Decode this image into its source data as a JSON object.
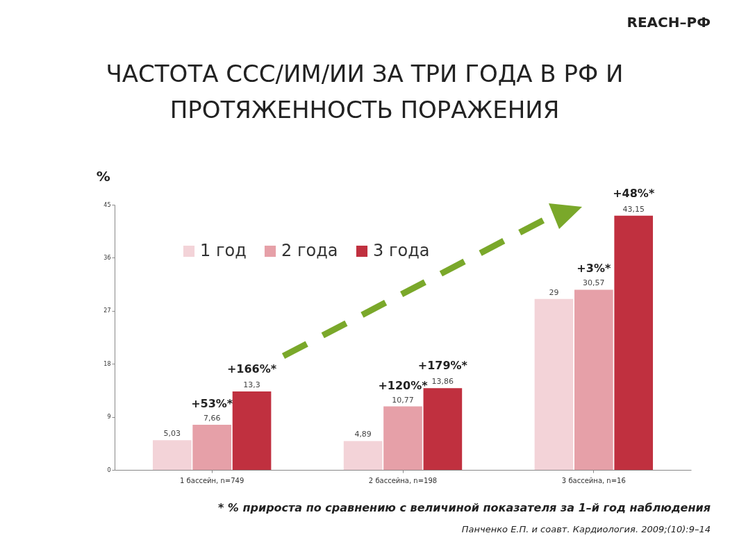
{
  "chart_data": {
    "type": "bar",
    "title": "ЧАСТОТА ССС/ИМ/ИИ ЗА ТРИ ГОДА В РФ И ПРОТЯЖЕННОСТЬ ПОРАЖЕНИЯ",
    "ylabel": "%",
    "categories": [
      "1 бассейн, n=749",
      "2 бассейна, n=198",
      "3 бассейна, n=16"
    ],
    "series": [
      {
        "name": "1 год",
        "color": "#f3d3d8",
        "values": [
          5.03,
          4.89,
          29
        ],
        "value_labels": [
          "5,03",
          "4,89",
          "29"
        ]
      },
      {
        "name": "2 года",
        "color": "#e6a0a8",
        "values": [
          7.66,
          10.77,
          30.57
        ],
        "value_labels": [
          "7,66",
          "10,77",
          "30,57"
        ]
      },
      {
        "name": "3 года",
        "color": "#c0303f",
        "values": [
          13.3,
          13.86,
          43.15
        ],
        "value_labels": [
          "13,3",
          "13,86",
          "43,15"
        ]
      }
    ],
    "ylim": [
      0,
      45
    ],
    "yticks": [
      0,
      9,
      18,
      27,
      36,
      45
    ],
    "grid": false,
    "legend": "top left",
    "annotations": [
      {
        "text": "+53%*",
        "x": "1 бассейн, n=749",
        "y": 7.66
      },
      {
        "text": "+120%*",
        "x": "2 бассейна, n=198",
        "y": 10.77
      },
      {
        "text": "+3%*",
        "x": "3 бассейна, n=16",
        "y": 30.57
      },
      "REACH–РФ",
      "* % прироста по сравнению с величиной показателя за 1–й год наблюдения",
      "Панченко Е.П. и соавт.  Кардиология. 2009;(10):9–14",
      "+166%*",
      "+179%*",
      "+48%*"
    ]
  }
}
